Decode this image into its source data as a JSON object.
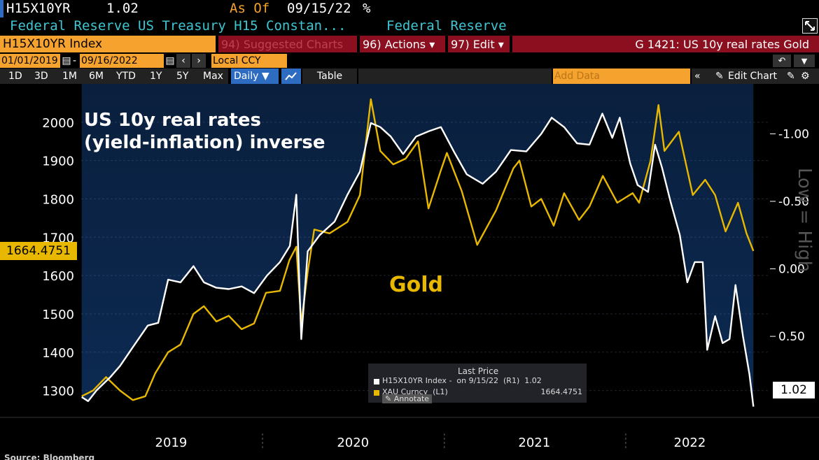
{
  "header": {
    "ticker": "H15X10YR",
    "value": "1.02",
    "as_of_label": "As Of",
    "as_of_date": "09/15/22",
    "pct": "%",
    "description": "Federal Reserve US Treasury H15 Constan...",
    "source": "Federal Reserve"
  },
  "toolbar": {
    "index_name": "H15X10YR Index",
    "suggested": "94) Suggested Charts",
    "actions": "96) Actions ▾",
    "edit": "97) Edit ▾",
    "chart_title": "G 1421: US 10y real rates Gold",
    "start_date": "01/01/2019",
    "end_date": "09/16/2022",
    "currency": "Local CCY",
    "ranges": [
      "1D",
      "3D",
      "1M",
      "6M",
      "YTD",
      "1Y",
      "5Y",
      "Max"
    ],
    "frequency": "Daily ▼",
    "table_label": "Table",
    "add_data_placeholder": "Add Data",
    "edit_chart": "Edit Chart"
  },
  "footer": {
    "source": "Source: Bloomberg"
  },
  "colors": {
    "gold": "#e8b800",
    "white": "#ffffff",
    "navy": "#0a1f3d",
    "orange": "#f6a22e",
    "red": "#8b0f1f",
    "cyan": "#3ec6d3"
  },
  "chart_data": {
    "type": "line",
    "annotations": [
      "US 10y real rates",
      "(yield-inflation) inverse",
      "Gold",
      "Low = High"
    ],
    "x_ticks": [
      "2019",
      "2020",
      "2021",
      "2022"
    ],
    "x_range": [
      "2019-01-01",
      "2022-09-16"
    ],
    "left_axis": {
      "ticks": [
        1300,
        1400,
        1500,
        1600,
        1700,
        1800,
        1900,
        2000
      ],
      "ylim": [
        1230,
        2100
      ]
    },
    "right_axis": {
      "ticks": [
        "-1.00",
        "-0.50",
        "0.00",
        "0.50"
      ],
      "values": [
        -1.0,
        -0.5,
        0.0,
        0.5
      ],
      "inverted": true,
      "ylim": [
        -1.37,
        1.1
      ]
    },
    "series": [
      {
        "name": "H15X10YR Index",
        "axis": "right",
        "color": "#ffffff",
        "last_value": "1.02",
        "x": [
          "2019-01-02",
          "2019-01-15",
          "2019-02-01",
          "2019-03-01",
          "2019-03-20",
          "2019-04-15",
          "2019-05-15",
          "2019-06-05",
          "2019-06-25",
          "2019-07-20",
          "2019-08-15",
          "2019-09-05",
          "2019-09-30",
          "2019-10-25",
          "2019-11-20",
          "2019-12-15",
          "2020-01-10",
          "2020-02-05",
          "2020-02-25",
          "2020-03-09",
          "2020-03-19",
          "2020-04-01",
          "2020-04-25",
          "2020-05-25",
          "2020-06-20",
          "2020-07-15",
          "2020-08-06",
          "2020-08-25",
          "2020-09-15",
          "2020-10-10",
          "2020-11-05",
          "2020-12-01",
          "2020-12-25",
          "2021-01-20",
          "2021-02-15",
          "2021-03-19",
          "2021-04-15",
          "2021-05-15",
          "2021-06-15",
          "2021-07-15",
          "2021-08-05",
          "2021-08-30",
          "2021-09-25",
          "2021-10-20",
          "2021-11-15",
          "2021-12-05",
          "2021-12-20",
          "2022-01-10",
          "2022-01-25",
          "2022-02-15",
          "2022-03-01",
          "2022-03-15",
          "2022-04-01",
          "2022-04-20",
          "2022-05-05",
          "2022-05-20",
          "2022-06-05",
          "2022-06-14",
          "2022-06-30",
          "2022-07-15",
          "2022-07-29",
          "2022-08-10",
          "2022-08-25",
          "2022-09-07",
          "2022-09-15"
        ],
        "y": [
          0.95,
          0.98,
          0.9,
          0.8,
          0.72,
          0.58,
          0.42,
          0.4,
          0.08,
          0.1,
          -0.02,
          0.1,
          0.14,
          0.15,
          0.13,
          0.18,
          0.05,
          -0.05,
          -0.17,
          -0.55,
          0.52,
          -0.13,
          -0.25,
          -0.35,
          -0.55,
          -0.72,
          -1.08,
          -1.05,
          -0.98,
          -0.85,
          -0.98,
          -1.02,
          -1.05,
          -0.87,
          -0.7,
          -0.63,
          -0.72,
          -0.88,
          -0.87,
          -1.0,
          -1.12,
          -1.05,
          -0.93,
          -0.92,
          -1.15,
          -0.97,
          -1.12,
          -0.78,
          -0.62,
          -0.57,
          -0.92,
          -0.75,
          -0.5,
          -0.25,
          0.1,
          -0.05,
          -0.05,
          0.6,
          0.35,
          0.55,
          0.52,
          0.12,
          0.5,
          0.78,
          1.02
        ]
      },
      {
        "name": "XAU Curncy",
        "axis": "left",
        "color": "#e8b800",
        "last_value": "1664.4751",
        "x": [
          "2019-01-02",
          "2019-01-25",
          "2019-02-20",
          "2019-03-20",
          "2019-04-15",
          "2019-05-10",
          "2019-05-30",
          "2019-06-25",
          "2019-07-20",
          "2019-08-15",
          "2019-09-05",
          "2019-09-30",
          "2019-10-25",
          "2019-11-20",
          "2019-12-15",
          "2020-01-08",
          "2020-02-05",
          "2020-02-24",
          "2020-03-09",
          "2020-03-19",
          "2020-04-01",
          "2020-04-14",
          "2020-05-15",
          "2020-06-20",
          "2020-07-15",
          "2020-08-06",
          "2020-08-25",
          "2020-09-20",
          "2020-10-15",
          "2020-11-09",
          "2020-11-30",
          "2020-12-25",
          "2021-01-06",
          "2021-02-05",
          "2021-03-08",
          "2021-04-15",
          "2021-05-20",
          "2021-06-01",
          "2021-06-25",
          "2021-07-15",
          "2021-08-09",
          "2021-08-30",
          "2021-09-29",
          "2021-10-20",
          "2021-11-16",
          "2021-12-15",
          "2022-01-15",
          "2022-01-28",
          "2022-02-20",
          "2022-03-08",
          "2022-03-20",
          "2022-04-18",
          "2022-05-16",
          "2022-06-10",
          "2022-06-30",
          "2022-07-21",
          "2022-08-15",
          "2022-09-01",
          "2022-09-15"
        ],
        "y": [
          1285,
          1300,
          1335,
          1300,
          1275,
          1285,
          1345,
          1400,
          1420,
          1500,
          1520,
          1480,
          1495,
          1460,
          1475,
          1555,
          1560,
          1640,
          1675,
          1475,
          1610,
          1720,
          1710,
          1740,
          1810,
          2060,
          1925,
          1890,
          1905,
          1950,
          1775,
          1875,
          1920,
          1820,
          1680,
          1770,
          1880,
          1900,
          1780,
          1800,
          1730,
          1815,
          1745,
          1780,
          1860,
          1790,
          1815,
          1790,
          1900,
          2045,
          1925,
          1975,
          1810,
          1850,
          1810,
          1715,
          1790,
          1710,
          1664
        ]
      }
    ]
  }
}
